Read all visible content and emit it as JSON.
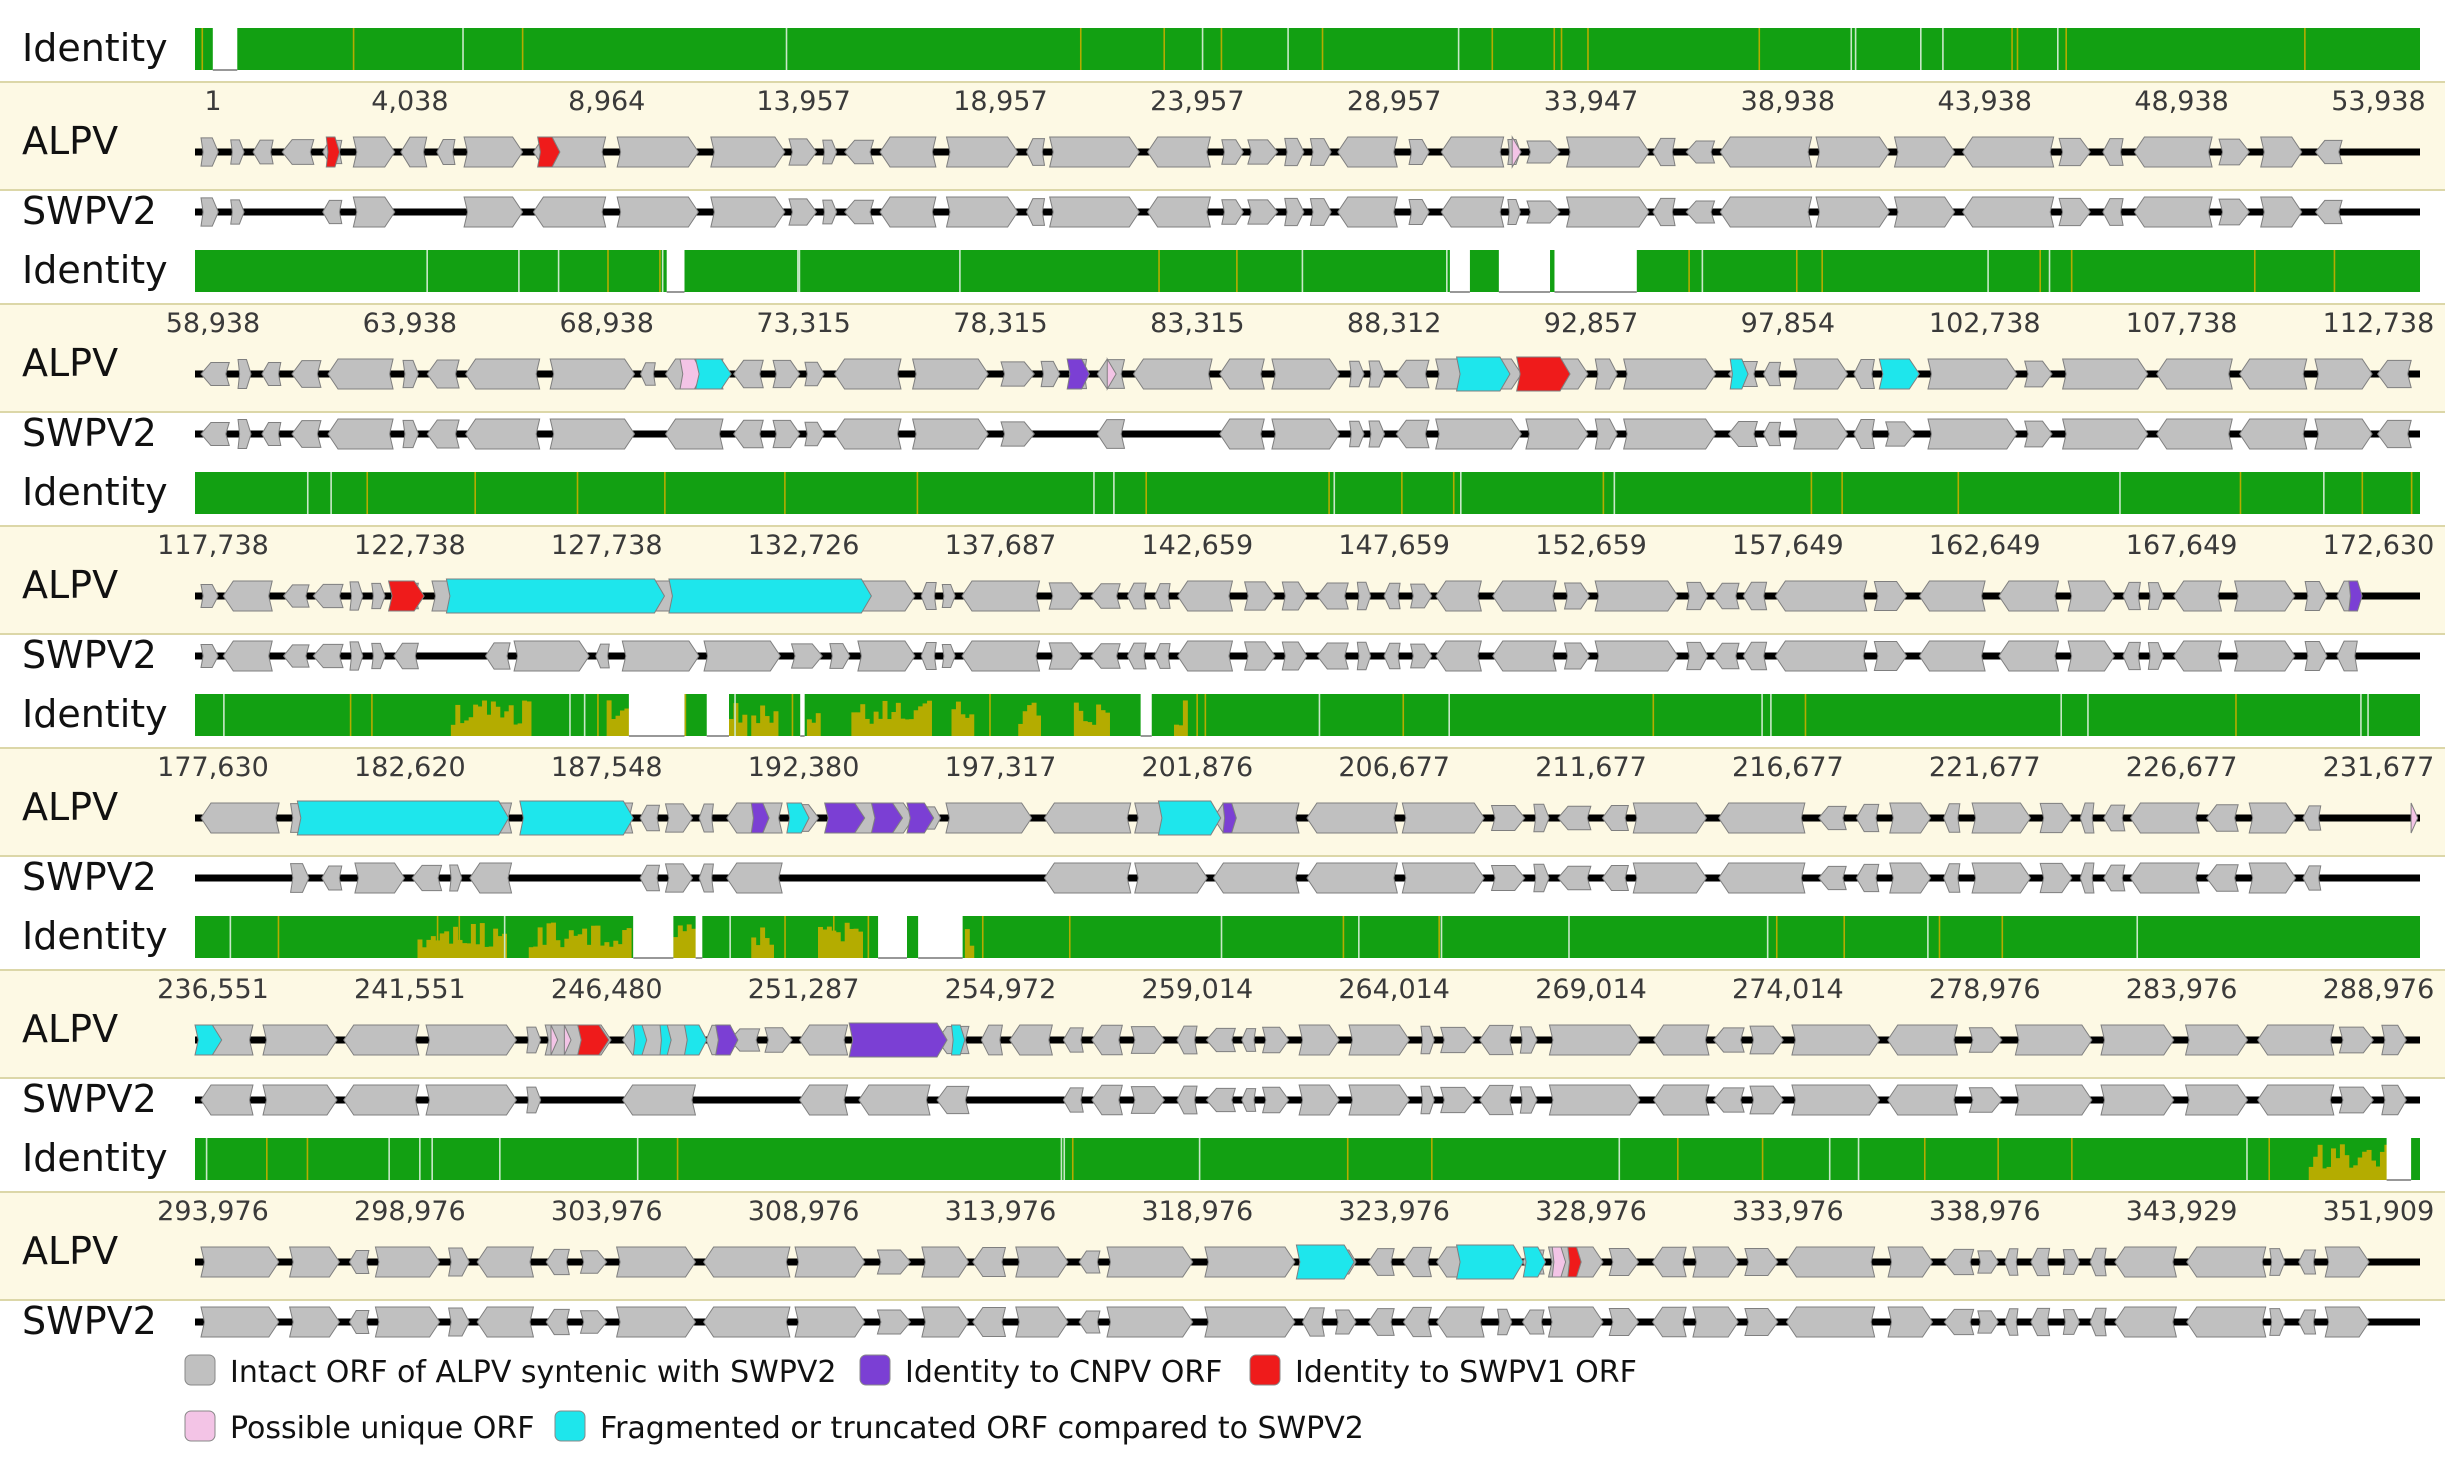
{
  "labels": {
    "identity": "Identity",
    "query": "ALPV",
    "reference": "SWPV2"
  },
  "colors": {
    "intact": "#c0c0c0",
    "cnpv": "#7b3fd4",
    "swpv1": "#ef1b1b",
    "unique": "#f3c4e6",
    "fragmented": "#1ee6ec",
    "identity_high": "#12a012",
    "identity_mid": "#b4ac00",
    "backbone": "#000000",
    "band": "#fdf9e4",
    "band_border": "#dcd7a8"
  },
  "rows": [
    {
      "ticks": [
        "1",
        "4,038",
        "8,964",
        "13,957",
        "18,957",
        "23,957",
        "28,957",
        "33,947",
        "38,938",
        "43,938",
        "48,938",
        "53,938"
      ]
    },
    {
      "ticks": [
        "58,938",
        "63,938",
        "68,938",
        "73,315",
        "78,315",
        "83,315",
        "88,312",
        "92,857",
        "97,854",
        "102,738",
        "107,738",
        "112,738"
      ]
    },
    {
      "ticks": [
        "117,738",
        "122,738",
        "127,738",
        "132,726",
        "137,687",
        "142,659",
        "147,659",
        "152,659",
        "157,649",
        "162,649",
        "167,649",
        "172,630"
      ]
    },
    {
      "ticks": [
        "177,630",
        "182,620",
        "187,548",
        "192,380",
        "197,317",
        "201,876",
        "206,677",
        "211,677",
        "216,677",
        "221,677",
        "226,677",
        "231,677"
      ]
    },
    {
      "ticks": [
        "236,551",
        "241,551",
        "246,480",
        "251,287",
        "254,972",
        "259,014",
        "264,014",
        "269,014",
        "274,014",
        "278,976",
        "283,976",
        "288,976"
      ]
    },
    {
      "ticks": [
        "293,976",
        "298,976",
        "303,976",
        "308,976",
        "313,976",
        "318,976",
        "323,976",
        "328,976",
        "333,976",
        "338,976",
        "343,929",
        "351,909"
      ]
    }
  ],
  "legend": [
    {
      "key": "intact",
      "label": "Intact ORF of ALPV syntenic with SWPV2"
    },
    {
      "key": "cnpv",
      "label": "Identity to CNPV ORF"
    },
    {
      "key": "swpv1",
      "label": "Identity to SWPV1 ORF"
    },
    {
      "key": "unique",
      "label": "Possible unique ORF"
    },
    {
      "key": "fragmented",
      "label": "Fragmented or truncated ORF compared to SWPV2"
    }
  ]
}
